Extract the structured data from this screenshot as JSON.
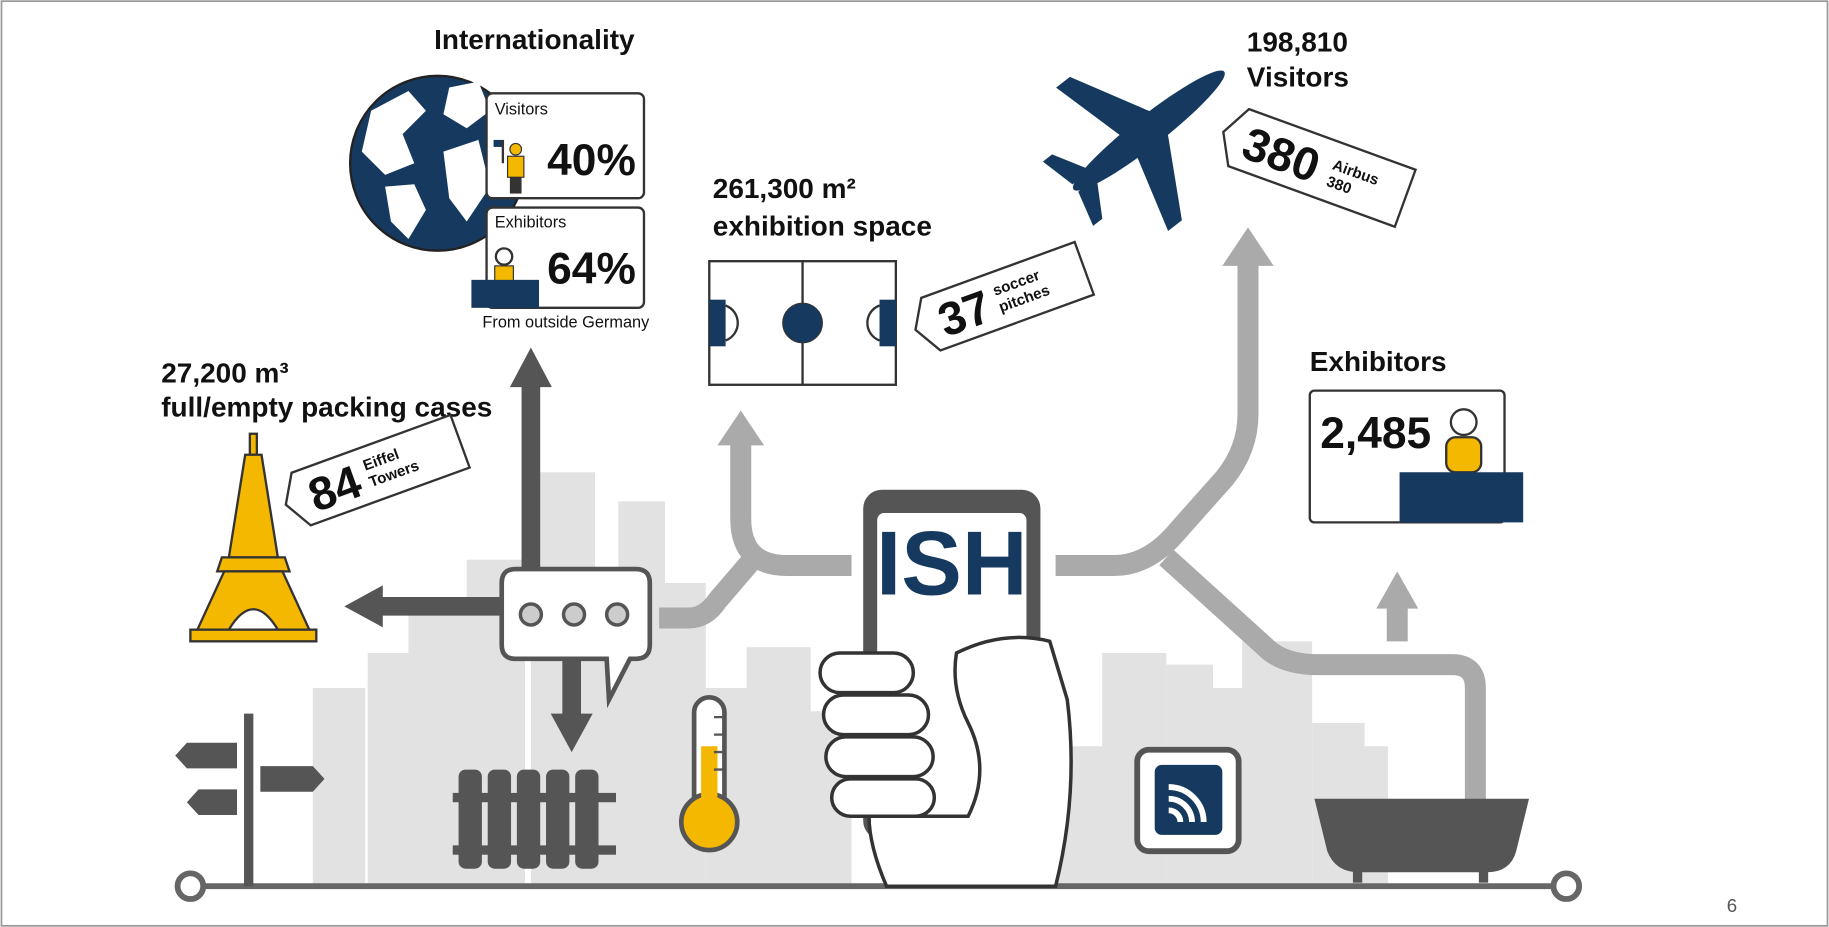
{
  "page_number": "6",
  "logo": "ISH",
  "internationality": {
    "title": "Internationality",
    "visitors_label": "Visitors",
    "visitors_share": "40%",
    "exhibitors_label": "Exhibitors",
    "exhibitors_share": "64%",
    "note": "From outside Germany"
  },
  "packing_cases": {
    "amount": "27,200 m³",
    "label": "full/empty packing cases",
    "comparison_number": "84",
    "comparison_label": [
      "Eiffel",
      "Towers"
    ]
  },
  "exhibition_space": {
    "amount": "261,300 m²",
    "label": "exhibition space",
    "comparison_number": "37",
    "comparison_label": [
      "soccer",
      "pitches"
    ]
  },
  "visitors": {
    "amount": "198,810",
    "label": "Visitors",
    "comparison_number": "380",
    "comparison_label": [
      "Airbus",
      "380"
    ]
  },
  "exhibitors": {
    "title": "Exhibitors",
    "amount": "2,485"
  }
}
